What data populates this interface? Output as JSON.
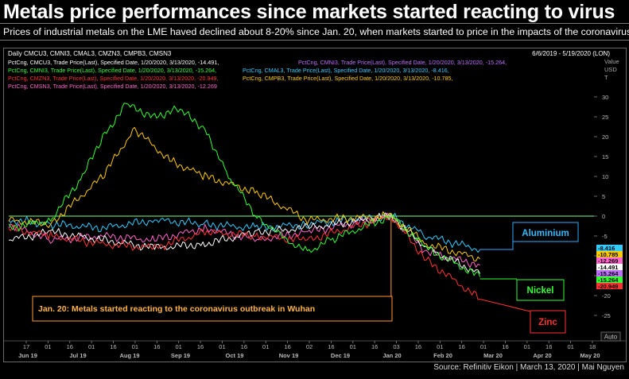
{
  "header": {
    "title": "Metals price performances since markets started reacting to virus",
    "subtitle": "Prices of industrial metals on the LME haved declined about 8-20% since Jan. 20, when markets started to price in the impacts of the coronavirus"
  },
  "footer": {
    "source": "Source: Refinitiv Eikon | March 13, 2020 | Mai Nguyen"
  },
  "chart_data": {
    "type": "line",
    "panel_title": "Daily CMCU3, CMNI3, CMAL3, CMZN3, CMPB3, CMSN3",
    "date_range": "6/6/2019 - 5/19/2020 (LON)",
    "y_axis_header": [
      "Value",
      "USD",
      "T"
    ],
    "ylim": [
      -30,
      32
    ],
    "yticks": [
      30,
      25,
      20,
      15,
      10,
      5,
      0,
      -5,
      -10,
      -15,
      -20,
      -25
    ],
    "auto_label": "Auto",
    "x_day_ticks": [
      "17",
      "01",
      "16",
      "01",
      "16",
      "01",
      "16",
      "01",
      "16",
      "01",
      "16",
      "01",
      "16",
      "02",
      "16",
      "01",
      "16",
      "03",
      "16",
      "01",
      "16",
      "01",
      "16",
      "01",
      "16",
      "01",
      "18"
    ],
    "x_month_labels": [
      "Jun 19",
      "Jul 19",
      "Aug 19",
      "Sep 19",
      "Oct 19",
      "Nov 19",
      "Dec 19",
      "Jan 20",
      "Feb 20",
      "Mar 20",
      "Apr 20",
      "May 20"
    ],
    "legend": [
      {
        "text": "PctCng, CMCU3, Trade Price(Last), Specified Date, 1/20/2020, 3/13/2020, -14.491,",
        "color": "#ffffff"
      },
      {
        "text": "PctCng, CMNI3, Trade Price(Last), Specified Date, 1/20/2020, 3/13/2020, -15.264,",
        "color": "#c070ff"
      },
      {
        "text": "PctCng, CMNI3, Trade Price(Last), Specified Date, 1/20/2020, 3/13/2020, -15.264,",
        "color": "#33ff33"
      },
      {
        "text": "PctCng, CMAL3, Trade Price(Last), Specified Date, 1/20/2020, 3/13/2020, -8.416,",
        "color": "#33ccff"
      },
      {
        "text": "PctCng, CMZN3, Trade Price(Last), Specified Date, 1/20/2020, 3/13/2020, -20.949,",
        "color": "#ff3333"
      },
      {
        "text": "PctCng, CMPB3, Trade Price(Last), Specified Date, 1/20/2020, 3/13/2020, -10.785,",
        "color": "#ffcc00"
      },
      {
        "text": "PctCng, CMSN3, Trade Price(Last), Specified Date, 1/20/2020, 3/13/2020, -12.269",
        "color": "#ff66cc"
      }
    ],
    "series": [
      {
        "code": "CMCU3",
        "color": "#ffffff",
        "last": -14.491,
        "x": [
          "2019-06-06",
          "2019-07-01",
          "2019-08-01",
          "2019-09-01",
          "2019-10-01",
          "2019-11-01",
          "2019-12-01",
          "2020-01-20",
          "2020-02-10",
          "2020-03-13"
        ],
        "values": [
          -6,
          -4,
          -6,
          -8,
          -7,
          -4,
          -3,
          0,
          -8,
          -14.5
        ]
      },
      {
        "code": "CMNI3",
        "color": "#33ff33",
        "last": -15.264,
        "x": [
          "2019-06-06",
          "2019-07-01",
          "2019-07-20",
          "2019-08-01",
          "2019-08-15",
          "2019-09-01",
          "2019-09-15",
          "2019-10-01",
          "2019-10-15",
          "2019-11-01",
          "2019-11-15",
          "2019-12-01",
          "2019-12-15",
          "2020-01-20",
          "2020-02-10",
          "2020-03-13"
        ],
        "values": [
          -3,
          -1,
          10,
          20,
          28,
          25,
          27,
          22,
          10,
          0,
          -5,
          -9,
          -6,
          0,
          -8,
          -15.3
        ]
      },
      {
        "code": "CMAL3",
        "color": "#33ccff",
        "last": -8.416,
        "x": [
          "2019-06-06",
          "2019-07-01",
          "2019-08-01",
          "2019-09-01",
          "2019-10-01",
          "2019-11-01",
          "2019-12-01",
          "2020-01-20",
          "2020-02-10",
          "2020-03-13"
        ],
        "values": [
          -1,
          -2,
          -3,
          -1,
          -2,
          -3,
          -2,
          0,
          -5,
          -8.4
        ]
      },
      {
        "code": "CMZN3",
        "color": "#ff3333",
        "last": -20.949,
        "x": [
          "2019-06-06",
          "2019-07-01",
          "2019-08-01",
          "2019-09-01",
          "2019-10-01",
          "2019-11-01",
          "2019-12-01",
          "2020-01-20",
          "2020-02-10",
          "2020-03-13"
        ],
        "values": [
          -3,
          -5,
          -7,
          -8,
          -4,
          -5,
          -6,
          0,
          -11,
          -20.9
        ]
      },
      {
        "code": "CMPB3",
        "color": "#ffcc00",
        "last": -10.785,
        "x": [
          "2019-06-06",
          "2019-07-01",
          "2019-08-01",
          "2019-08-20",
          "2019-09-10",
          "2019-10-01",
          "2019-11-01",
          "2019-12-01",
          "2020-01-20",
          "2020-02-10",
          "2020-03-13"
        ],
        "values": [
          -1,
          -2,
          10,
          22,
          14,
          10,
          6,
          -1,
          0,
          -7,
          -10.8
        ]
      },
      {
        "code": "CMSN3",
        "color": "#ff66cc",
        "last": -12.269,
        "x": [
          "2019-06-06",
          "2019-07-01",
          "2019-08-01",
          "2019-09-01",
          "2019-10-01",
          "2019-11-01",
          "2019-12-01",
          "2020-01-20",
          "2020-02-10",
          "2020-03-13"
        ],
        "values": [
          -2,
          -6,
          -5,
          -6,
          -3,
          -6,
          -4,
          0,
          -9,
          -12.3
        ]
      }
    ],
    "value_tags": [
      {
        "text": "-8.416",
        "bg": "#33ccff",
        "fg": "#000000"
      },
      {
        "text": "-10.785",
        "bg": "#ffcc00",
        "fg": "#000000"
      },
      {
        "text": "-12.269",
        "bg": "#ff66cc",
        "fg": "#000000"
      },
      {
        "text": "-14.491",
        "bg": "#ffffff",
        "fg": "#000000"
      },
      {
        "text": "-15.264",
        "bg": "#c070ff",
        "fg": "#000000"
      },
      {
        "text": "-15.264",
        "bg": "#33ff33",
        "fg": "#000000"
      },
      {
        "text": "-20.949",
        "bg": "#ff3333",
        "fg": "#000000"
      }
    ],
    "annotations": {
      "aluminium": "Aluminium",
      "nickel": "Nickel",
      "zinc": "Zinc",
      "event": "Jan. 20: Metals started reacting to the coronavirus outbreak in Wuhan"
    }
  }
}
